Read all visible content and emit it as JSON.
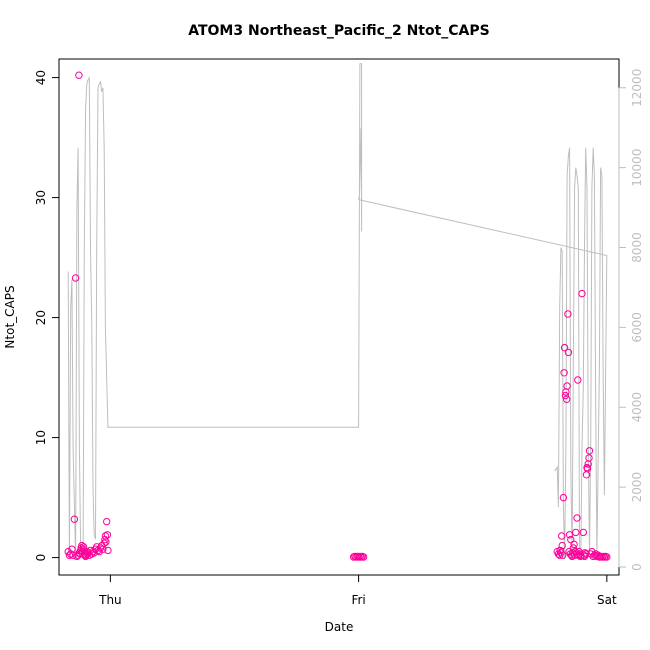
{
  "chart_data": {
    "type": "scatter",
    "title": "ATOM3 Northeast_Pacific_2 Ntot_CAPS",
    "xlabel": "Date",
    "ylabel": "Ntot_CAPS",
    "x_ticks": [
      {
        "label": "Thu",
        "x": 1.0
      },
      {
        "label": "Fri",
        "x": 2.0
      },
      {
        "label": "Sat",
        "x": 3.0
      }
    ],
    "xlim": [
      0.793,
      3.049
    ],
    "ylim": [
      -1.45,
      41.55
    ],
    "y_ticks": [
      0,
      10,
      20,
      30,
      40
    ],
    "y2_ticks": [
      0,
      2000,
      4000,
      6000,
      8000,
      10000,
      12000
    ],
    "y2lim": [
      -200,
      12720
    ],
    "point_color": "#ff0099",
    "line_color": "#bebebe",
    "grid": false,
    "legend": "none",
    "series": [
      {
        "kind": "points",
        "axis": "left",
        "x": [
          0.83,
          0.835,
          0.84,
          0.845,
          0.85,
          0.855,
          0.86,
          0.865,
          0.87,
          0.873,
          0.875,
          0.878,
          0.88,
          0.882,
          0.885,
          0.888,
          0.89,
          0.892,
          0.895,
          0.898,
          0.9,
          0.903,
          0.905,
          0.908,
          0.91,
          0.915,
          0.92,
          0.925,
          0.93,
          0.935,
          0.94,
          0.945,
          0.95,
          0.955,
          0.96,
          0.965,
          0.97,
          0.975,
          0.978,
          0.98,
          0.982,
          0.985,
          0.988,
          0.99,
          1.98,
          1.985,
          1.99,
          1.995,
          2.0,
          2.005,
          2.01,
          2.015,
          2.02,
          2.8,
          2.805,
          2.81,
          2.812,
          2.815,
          2.818,
          2.82,
          2.822,
          2.825,
          2.828,
          2.83,
          2.833,
          2.835,
          2.838,
          2.84,
          2.843,
          2.845,
          2.848,
          2.85,
          2.853,
          2.855,
          2.858,
          2.86,
          2.863,
          2.865,
          2.868,
          2.87,
          2.873,
          2.875,
          2.878,
          2.88,
          2.883,
          2.885,
          2.888,
          2.89,
          2.893,
          2.895,
          2.9,
          2.905,
          2.908,
          2.91,
          2.912,
          2.915,
          2.918,
          2.92,
          2.922,
          2.925,
          2.928,
          2.93,
          2.935,
          2.94,
          2.945,
          2.95,
          2.955,
          2.96,
          2.965,
          2.97,
          2.975,
          2.98,
          2.985,
          2.99,
          2.995,
          3.0
        ],
        "y": [
          0.5,
          0.2,
          0.3,
          0.7,
          0.2,
          3.2,
          23.3,
          0.1,
          0.2,
          40.2,
          0.4,
          0.3,
          0.6,
          0.8,
          1.0,
          0.5,
          0.7,
          0.9,
          0.3,
          0.2,
          0.1,
          0.2,
          0.5,
          0.3,
          0.4,
          0.2,
          0.6,
          0.3,
          0.5,
          0.4,
          0.7,
          0.9,
          0.6,
          0.5,
          0.8,
          1.0,
          0.7,
          1.2,
          1.5,
          1.8,
          1.3,
          3.0,
          1.9,
          0.6,
          0.05,
          0.1,
          0.05,
          0.1,
          0.05,
          0.1,
          0.05,
          0.1,
          0.05,
          0.5,
          0.3,
          0.2,
          0.6,
          0.4,
          1.8,
          1.0,
          0.2,
          5.0,
          15.4,
          17.5,
          13.5,
          13.8,
          13.2,
          14.3,
          20.3,
          17.1,
          0.5,
          1.9,
          0.3,
          1.5,
          0.2,
          0.1,
          0.4,
          0.8,
          1.1,
          0.2,
          0.5,
          2.1,
          0.3,
          3.3,
          14.8,
          0.2,
          0.5,
          0.3,
          0.1,
          0.2,
          22.0,
          2.1,
          0.2,
          0.1,
          0.4,
          0.3,
          6.9,
          7.5,
          7.4,
          7.8,
          8.3,
          8.9,
          0.3,
          0.5,
          0.1,
          0.2,
          0.3,
          0.1,
          0.2,
          0.05,
          0.1,
          0.05,
          0.1,
          0.05,
          0.1,
          0.05
        ]
      },
      {
        "kind": "line",
        "axis": "right",
        "x": [
          0.83,
          0.835,
          0.84,
          0.845,
          0.85,
          0.86,
          0.865,
          0.87,
          0.875,
          0.88,
          0.885,
          0.89,
          0.895,
          0.9,
          0.905,
          0.91,
          0.915,
          0.92,
          0.925,
          0.93,
          0.935,
          0.94,
          0.945,
          0.95,
          0.955,
          0.96,
          0.965,
          0.97,
          0.975,
          0.98,
          0.99,
          2.0,
          2.005,
          2.012,
          2.012,
          2.01,
          2.003,
          2.0,
          1.999,
          3.0,
          2.99,
          2.985,
          2.98,
          2.975,
          2.97,
          2.96,
          2.955,
          2.95,
          2.945,
          2.94,
          2.935,
          2.93,
          2.925,
          2.92,
          2.915,
          2.91,
          2.905,
          2.9,
          2.895,
          2.89,
          2.885,
          2.88,
          2.875,
          2.87,
          2.865,
          2.86,
          2.855,
          2.85,
          2.845,
          2.84,
          2.835,
          2.83,
          2.825,
          2.82,
          2.815,
          2.81,
          2.805,
          2.8,
          2.79
        ],
        "y": [
          7400,
          200,
          6500,
          7200,
          3000,
          200,
          9000,
          10500,
          3000,
          500,
          400,
          400,
          8000,
          11500,
          12100,
          12200,
          12250,
          8000,
          6000,
          2000,
          800,
          700,
          8000,
          12000,
          12100,
          12150,
          11900,
          12000,
          10500,
          6000,
          3500,
          3500,
          12600,
          12600,
          8400,
          11000,
          9300,
          9200,
          9200,
          7800,
          1800,
          5000,
          9800,
          10000,
          5000,
          300,
          4000,
          9800,
          10500,
          9500,
          3000,
          300,
          3200,
          9500,
          10500,
          8000,
          4500,
          3000,
          200,
          500,
          9500,
          9800,
          10000,
          9500,
          5000,
          300,
          2500,
          10500,
          10300,
          9800,
          3000,
          200,
          1500,
          7900,
          8000,
          6500,
          1500,
          2500,
          2400
        ]
      }
    ]
  }
}
